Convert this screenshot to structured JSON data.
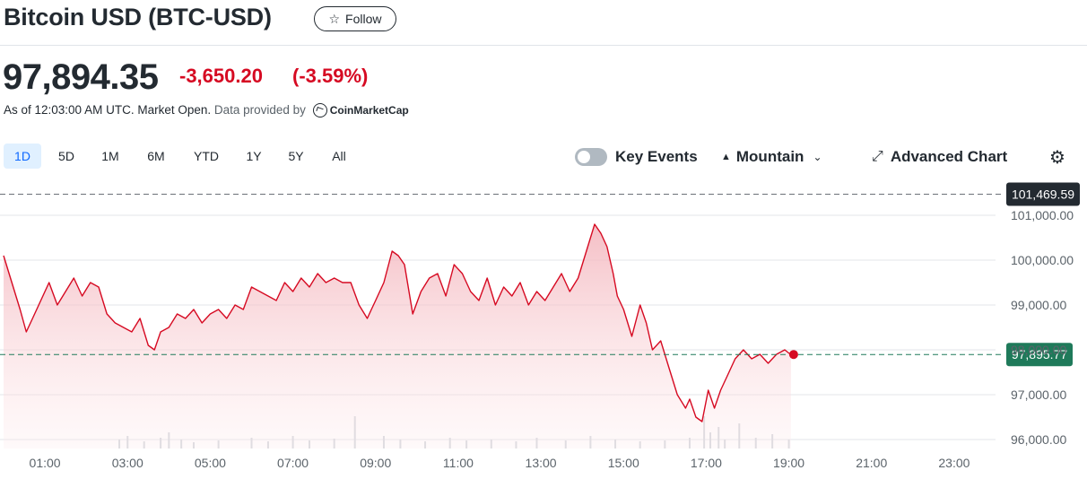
{
  "header": {
    "title": "Bitcoin USD (BTC-USD)",
    "follow_label": "Follow",
    "follow_icon": "star-outline-icon"
  },
  "quote": {
    "price": "97,894.35",
    "change": "-3,650.20",
    "change_pct": "(-3.59%)",
    "change_color": "#d60a22",
    "as_of": "As of 12:03:00 AM UTC. Market Open.",
    "data_provider_prefix": "Data provided by",
    "data_provider": "CoinMarketCap"
  },
  "ranges": {
    "tabs": [
      "1D",
      "5D",
      "1M",
      "6M",
      "YTD",
      "1Y",
      "5Y",
      "All"
    ],
    "active": "1D"
  },
  "toolbar": {
    "key_events_label": "Key Events",
    "key_events_on": false,
    "chart_type_label": "Mountain",
    "chart_type_icon": "mountain-icon",
    "advanced_label": "Advanced Chart",
    "advanced_icon": "expand-arrows-icon",
    "settings_icon": "gear-icon"
  },
  "chart_data": {
    "type": "area",
    "line_color": "#d60a22",
    "fill_color": "#f7c6cc",
    "prev_close": 101469.59,
    "prev_close_label": "101,469.59",
    "last_value": 97895.77,
    "last_value_label": "97,895.77",
    "ylim": [
      95800,
      101800
    ],
    "y_ticks": [
      {
        "value": 101000,
        "label": "101,000.00"
      },
      {
        "value": 100000,
        "label": "100,000.00"
      },
      {
        "value": 99000,
        "label": "99,000.00"
      },
      {
        "value": 98000,
        "label": "98,000.00"
      },
      {
        "value": 97000,
        "label": "97,000.00"
      },
      {
        "value": 96000,
        "label": "96,000.00"
      }
    ],
    "x_range_hours": [
      0,
      24
    ],
    "x_ticks": [
      {
        "hour": 1,
        "label": "01:00"
      },
      {
        "hour": 3,
        "label": "03:00"
      },
      {
        "hour": 5,
        "label": "05:00"
      },
      {
        "hour": 7,
        "label": "07:00"
      },
      {
        "hour": 9,
        "label": "09:00"
      },
      {
        "hour": 11,
        "label": "11:00"
      },
      {
        "hour": 13,
        "label": "13:00"
      },
      {
        "hour": 15,
        "label": "15:00"
      },
      {
        "hour": 17,
        "label": "17:00"
      },
      {
        "hour": 19,
        "label": "19:00"
      },
      {
        "hour": 21,
        "label": "21:00"
      },
      {
        "hour": 23,
        "label": "23:00"
      }
    ],
    "series": [
      {
        "x": [
          0.0,
          0.2,
          0.4,
          0.55,
          0.7,
          0.9,
          1.1,
          1.3,
          1.5,
          1.7,
          1.9,
          2.1,
          2.3,
          2.5,
          2.7,
          2.9,
          3.1,
          3.3,
          3.5,
          3.65,
          3.8,
          4.0,
          4.2,
          4.4,
          4.6,
          4.8,
          5.0,
          5.2,
          5.4,
          5.6,
          5.8,
          6.0,
          6.2,
          6.4,
          6.6,
          6.8,
          7.0,
          7.2,
          7.4,
          7.6,
          7.8,
          8.0,
          8.2,
          8.4,
          8.6,
          8.8,
          8.9,
          9.0,
          9.2,
          9.4,
          9.55,
          9.7,
          9.9,
          10.1,
          10.3,
          10.5,
          10.7,
          10.9,
          11.1,
          11.3,
          11.5,
          11.7,
          11.9,
          12.1,
          12.3,
          12.5,
          12.7,
          12.9,
          13.1,
          13.3,
          13.5,
          13.7,
          13.9,
          14.1,
          14.3,
          14.45,
          14.6,
          14.75,
          14.85,
          15.0,
          15.2,
          15.4,
          15.55,
          15.7,
          15.9,
          16.1,
          16.3,
          16.5,
          16.6,
          16.75,
          16.9,
          17.05,
          17.2,
          17.35,
          17.5,
          17.7,
          17.9,
          18.1,
          18.3,
          18.5,
          18.7,
          18.9,
          19.05
        ],
        "y": [
          100100,
          99500,
          98900,
          98400,
          98700,
          99100,
          99500,
          99000,
          99300,
          99600,
          99200,
          99500,
          99400,
          98800,
          98600,
          98500,
          98400,
          98700,
          98100,
          98000,
          98400,
          98500,
          98800,
          98700,
          98900,
          98600,
          98800,
          98900,
          98700,
          99000,
          98900,
          99400,
          99300,
          99200,
          99100,
          99500,
          99300,
          99600,
          99400,
          99700,
          99500,
          99600,
          99500,
          99500,
          99000,
          98700,
          98900,
          99100,
          99500,
          100200,
          100100,
          99900,
          98800,
          99300,
          99600,
          99700,
          99200,
          99900,
          99700,
          99300,
          99100,
          99600,
          99000,
          99400,
          99200,
          99500,
          99000,
          99300,
          99100,
          99400,
          99700,
          99300,
          99600,
          100200,
          100800,
          100600,
          100300,
          99700,
          99200,
          98900,
          98300,
          99000,
          98600,
          98000,
          98200,
          97600,
          97000,
          96700,
          96900,
          96500,
          96400,
          97100,
          96700,
          97100,
          97400,
          97800,
          98000,
          97800,
          97900,
          97700,
          97900,
          98000,
          97890
        ]
      }
    ],
    "volume_color": "#d5d9de",
    "volume_x": [
      2.8,
      3.0,
      3.4,
      3.8,
      4.0,
      4.3,
      4.6,
      5.2,
      6.0,
      6.4,
      7.0,
      7.4,
      8.0,
      8.5,
      9.2,
      9.6,
      10.2,
      10.8,
      11.2,
      11.8,
      12.4,
      12.9,
      13.6,
      14.2,
      14.8,
      15.4,
      16.0,
      16.6,
      16.95,
      17.1,
      17.3,
      17.45,
      17.8,
      18.2,
      18.6,
      19.0
    ],
    "volume_v": [
      10,
      14,
      8,
      12,
      18,
      10,
      7,
      9,
      12,
      8,
      14,
      9,
      11,
      36,
      14,
      10,
      8,
      12,
      9,
      10,
      8,
      12,
      9,
      14,
      10,
      8,
      9,
      12,
      36,
      18,
      24,
      10,
      28,
      12,
      16,
      10
    ]
  }
}
